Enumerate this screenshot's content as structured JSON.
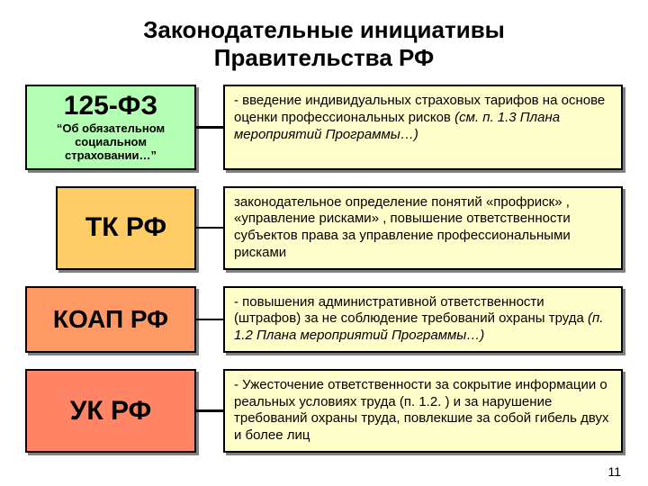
{
  "title_line1": "Законодательные инициативы",
  "title_line2": "Правительства РФ",
  "page_number": "11",
  "colors": {
    "row1_left_bg": "#b3ffb3",
    "row2_left_bg": "#ffcc66",
    "row3_left_bg": "#ff9966",
    "row4_left_bg": "#ff8566",
    "right_bg": "#ffffcc",
    "shadow": "#808080",
    "border": "#000000",
    "page_bg": "#ffffff"
  },
  "rows": [
    {
      "left_main": "125-ФЗ",
      "left_sub": "“Об обязательном социальном страховании…”",
      "right_plain": "- введение индивидуальных страховых тарифов на основе оценки профессиональных рисков ",
      "right_italic": "(см. п. 1.3 Плана мероприятий Программы…)"
    },
    {
      "left_main": "ТК РФ",
      "left_sub": "",
      "right_plain": "законодательное определение понятий «профриск» , «управление рисками» , повышение ответственности субъектов права за управление профессиональными рисками",
      "right_italic": ""
    },
    {
      "left_main": "КОАП РФ",
      "left_sub": "",
      "right_plain": "- повышения административной ответственности (штрафов) за не соблюдение требований охраны труда ",
      "right_italic": "(п. 1.2 Плана мероприятий Программы…)"
    },
    {
      "left_main": "УК РФ",
      "left_sub": "",
      "right_plain": "- Ужесточение ответственности за сокрытие информации о реальных условиях труда (п. 1.2. ) и за нарушение требований охраны труда, повлекшие за собой гибель двух и более лиц",
      "right_italic": ""
    }
  ]
}
